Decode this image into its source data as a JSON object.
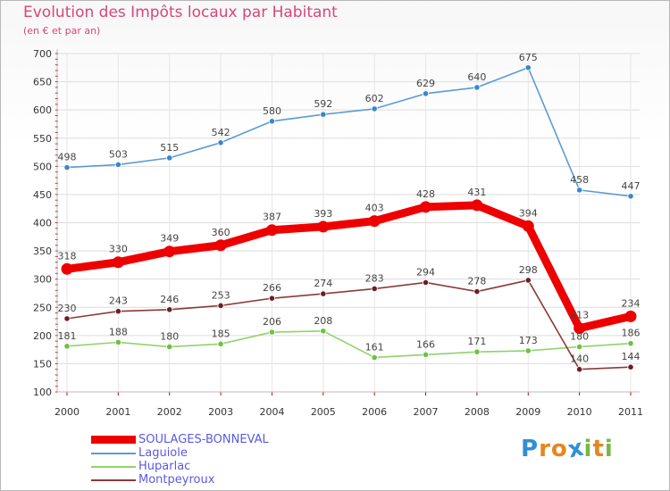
{
  "header": {
    "title": "Evolution des Impôts locaux par Habitant",
    "subtitle": "(en € et par an)"
  },
  "brand": {
    "logo_text": "Proxiti",
    "logo_letters": [
      "P",
      "r",
      "o",
      "x",
      "i",
      "t",
      "i"
    ],
    "logo_colors": [
      "#2f8fd8",
      "#e6861e",
      "#e6861e",
      "#2f8fd8",
      "#7ab648",
      "#e6861e",
      "#7ab648"
    ]
  },
  "chart_data": {
    "type": "line",
    "title": "Evolution des Impôts locaux par Habitant",
    "subtitle": "(en € et par an)",
    "xlabel": "",
    "ylabel": "",
    "ylim": [
      100,
      700
    ],
    "yticks": [
      100,
      150,
      200,
      250,
      300,
      350,
      400,
      450,
      500,
      550,
      600,
      650,
      700
    ],
    "categories": [
      "2000",
      "2001",
      "2002",
      "2003",
      "2004",
      "2005",
      "2006",
      "2007",
      "2008",
      "2009",
      "2010",
      "2011"
    ],
    "grid": true,
    "legend_position": "bottom-left",
    "series": [
      {
        "name": "Laguiole",
        "color": "#5b9bd5",
        "marker": "#3a87c8",
        "emphasis": false,
        "values": [
          498,
          503,
          515,
          542,
          580,
          592,
          602,
          629,
          640,
          675,
          458,
          447
        ]
      },
      {
        "name": "Huparlac",
        "color": "#8fd36a",
        "marker": "#6fc043",
        "emphasis": false,
        "values": [
          181,
          188,
          180,
          185,
          206,
          208,
          161,
          166,
          171,
          173,
          180,
          186
        ]
      },
      {
        "name": "Montpeyroux",
        "color": "#8b3a3a",
        "marker": "#6b1f24",
        "emphasis": false,
        "values": [
          230,
          243,
          246,
          253,
          266,
          274,
          283,
          294,
          278,
          298,
          140,
          144
        ]
      },
      {
        "name": "SOULAGES-BONNEVAL",
        "color": "#ee0000",
        "marker": "#ee0000",
        "emphasis": true,
        "values": [
          318,
          330,
          349,
          360,
          387,
          393,
          403,
          428,
          431,
          394,
          213,
          234
        ]
      }
    ],
    "legend": [
      {
        "name": "SOULAGES-BONNEVAL",
        "color": "#ee0000",
        "text_color": "#5a5ae0",
        "emphasis": true
      },
      {
        "name": "Laguiole",
        "color": "#5b9bd5",
        "text_color": "#5a5ae0",
        "emphasis": false
      },
      {
        "name": "Huparlac",
        "color": "#8fd36a",
        "text_color": "#5a5ae0",
        "emphasis": false
      },
      {
        "name": "Montpeyroux",
        "color": "#8b3a3a",
        "text_color": "#5a5ae0",
        "emphasis": false
      }
    ]
  }
}
